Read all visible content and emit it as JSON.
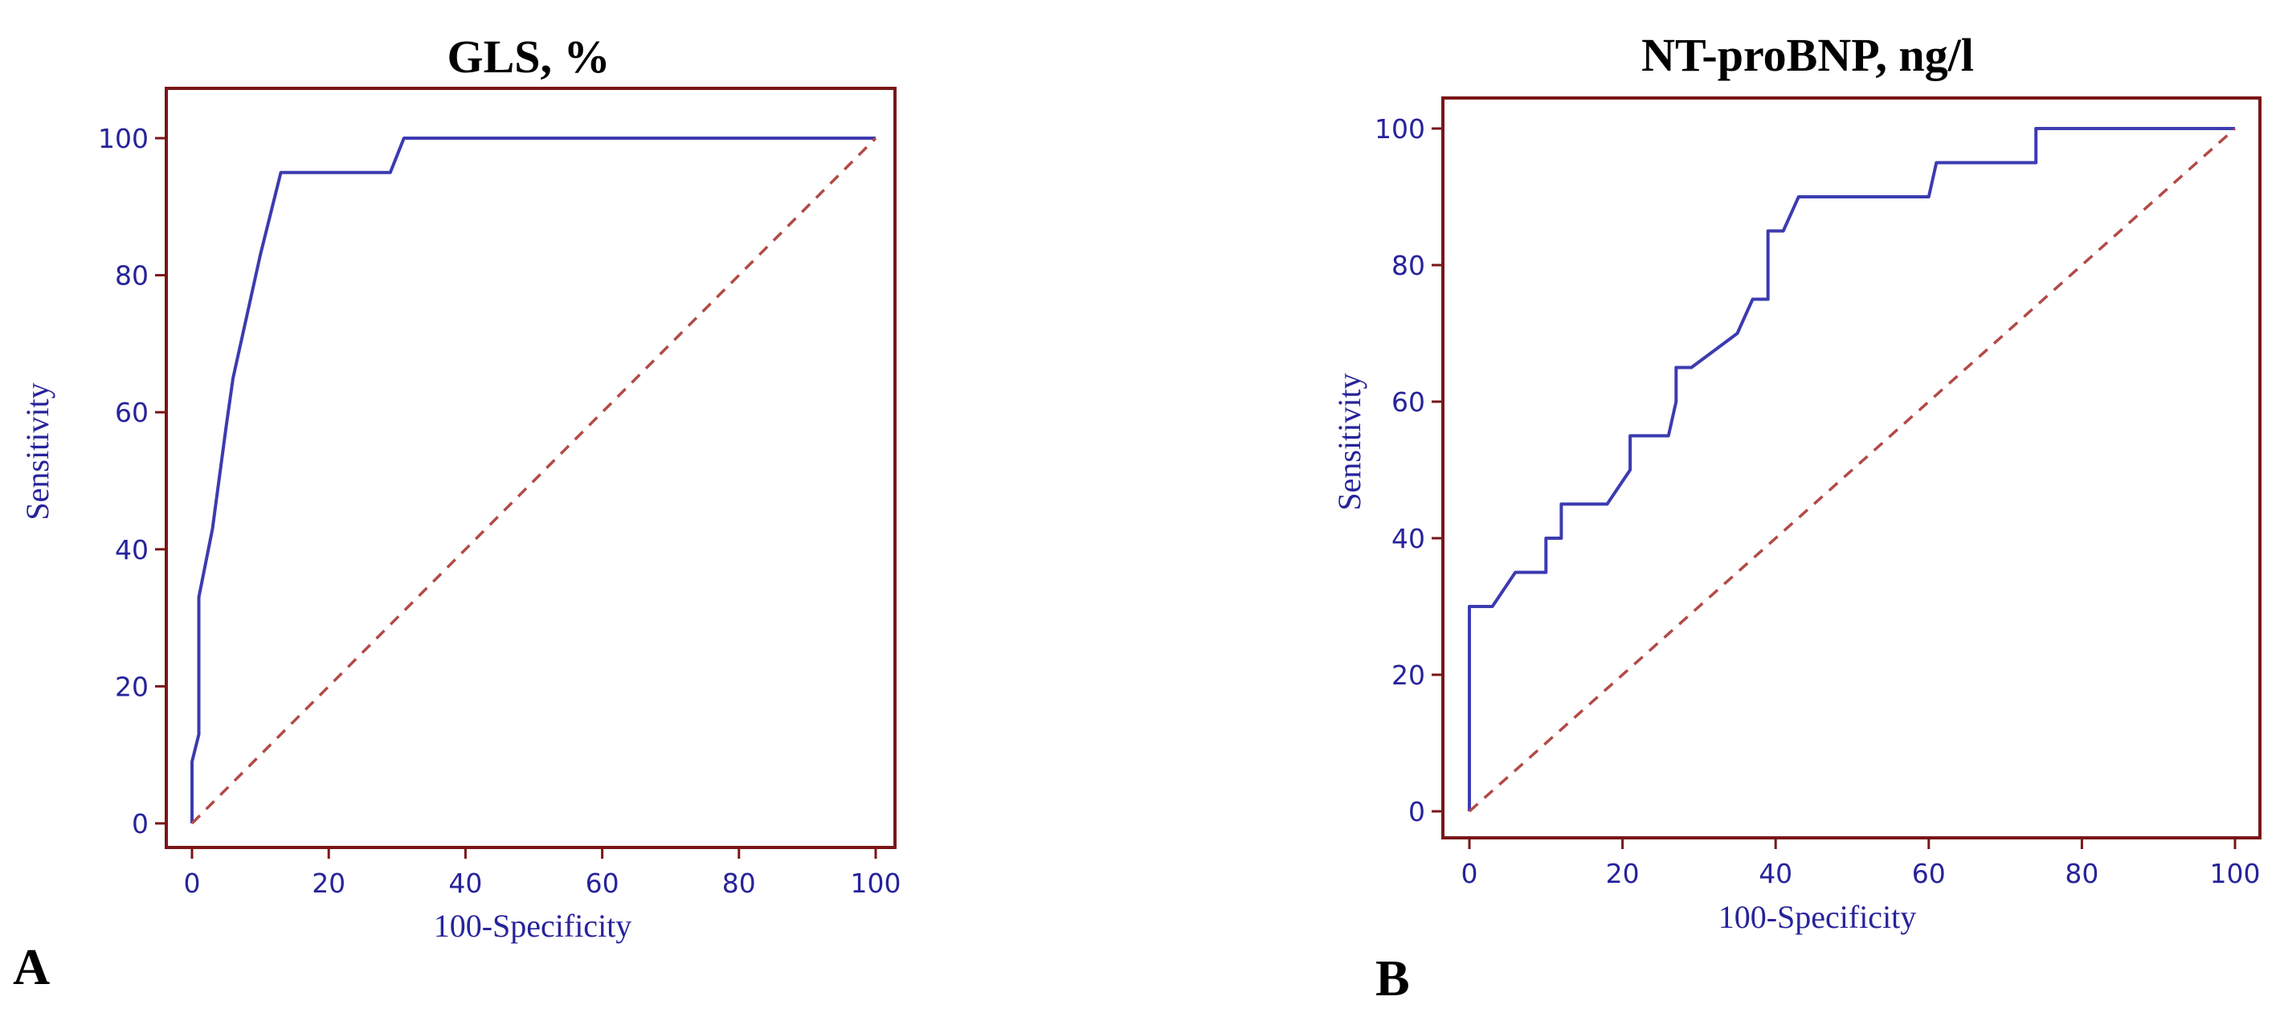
{
  "panels": [
    {
      "letter": "A"
    },
    {
      "letter": "B"
    }
  ],
  "colors": {
    "frame": "#7a1618",
    "curve": "#3c3bb0",
    "reference": "#b24a46",
    "text": "#27239a",
    "title": "#000000"
  },
  "chart_data": [
    {
      "type": "line",
      "title": "GLS, %",
      "xlabel": "100-Specificity",
      "ylabel": "Sensitivity",
      "xlim": [
        0,
        100
      ],
      "ylim": [
        0,
        100
      ],
      "xticks": [
        0,
        20,
        40,
        60,
        80,
        100
      ],
      "yticks": [
        0,
        20,
        40,
        60,
        80,
        100
      ],
      "grid": false,
      "series": [
        {
          "role": "roc-curve",
          "points": [
            [
              0,
              0
            ],
            [
              0,
              9
            ],
            [
              1,
              13
            ],
            [
              1,
              33
            ],
            [
              3,
              43
            ],
            [
              5,
              58
            ],
            [
              6,
              65
            ],
            [
              8,
              74
            ],
            [
              10,
              83
            ],
            [
              13,
              95
            ],
            [
              29,
              95
            ],
            [
              31,
              100
            ],
            [
              100,
              100
            ]
          ]
        },
        {
          "role": "reference-line",
          "points": [
            [
              0,
              0
            ],
            [
              100,
              100
            ]
          ]
        }
      ]
    },
    {
      "type": "line",
      "title": "NT-proBNP, ng/l",
      "xlabel": "100-Specificity",
      "ylabel": "Sensitivity",
      "xlim": [
        0,
        100
      ],
      "ylim": [
        0,
        100
      ],
      "xticks": [
        0,
        20,
        40,
        60,
        80,
        100
      ],
      "yticks": [
        0,
        20,
        40,
        60,
        80,
        100
      ],
      "grid": false,
      "series": [
        {
          "role": "roc-curve",
          "points": [
            [
              0,
              0
            ],
            [
              0,
              30
            ],
            [
              3,
              30
            ],
            [
              6,
              35
            ],
            [
              10,
              35
            ],
            [
              10,
              40
            ],
            [
              12,
              40
            ],
            [
              12,
              45
            ],
            [
              18,
              45
            ],
            [
              21,
              50
            ],
            [
              21,
              55
            ],
            [
              26,
              55
            ],
            [
              27,
              60
            ],
            [
              27,
              65
            ],
            [
              29,
              65
            ],
            [
              35,
              70
            ],
            [
              37,
              75
            ],
            [
              39,
              75
            ],
            [
              39,
              85
            ],
            [
              41,
              85
            ],
            [
              43,
              90
            ],
            [
              60,
              90
            ],
            [
              61,
              95
            ],
            [
              74,
              95
            ],
            [
              74,
              100
            ],
            [
              100,
              100
            ]
          ]
        },
        {
          "role": "reference-line",
          "points": [
            [
              0,
              0
            ],
            [
              100,
              100
            ]
          ]
        }
      ]
    }
  ]
}
